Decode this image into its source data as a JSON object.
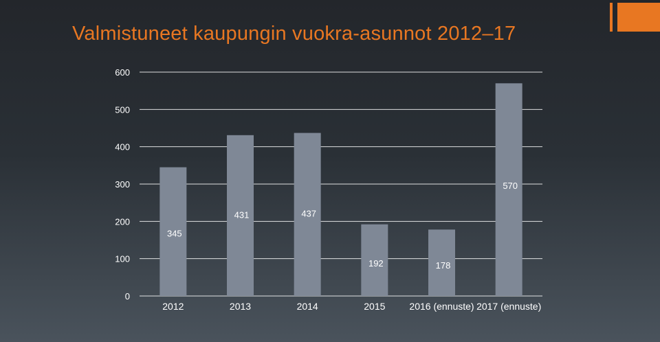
{
  "title": "Valmistuneet kaupungin vuokra-asunnot 2012–17",
  "colors": {
    "accent": "#e87722",
    "bar": "#7f8896",
    "grid": "#ffffff",
    "text": "#ffffff"
  },
  "chart_data": {
    "type": "bar",
    "categories": [
      "2012",
      "2013",
      "2014",
      "2015",
      "2016 (ennuste)",
      "2017 (ennuste)"
    ],
    "values": [
      345,
      431,
      437,
      192,
      178,
      570
    ],
    "data_labels": [
      "345",
      "431",
      "437",
      "192",
      "178",
      "570"
    ],
    "y_ticks": [
      "0",
      "100",
      "200",
      "300",
      "400",
      "500",
      "600"
    ],
    "ylim": [
      0,
      600
    ],
    "grid": true,
    "legend": "none",
    "xlabel": "",
    "ylabel": ""
  }
}
